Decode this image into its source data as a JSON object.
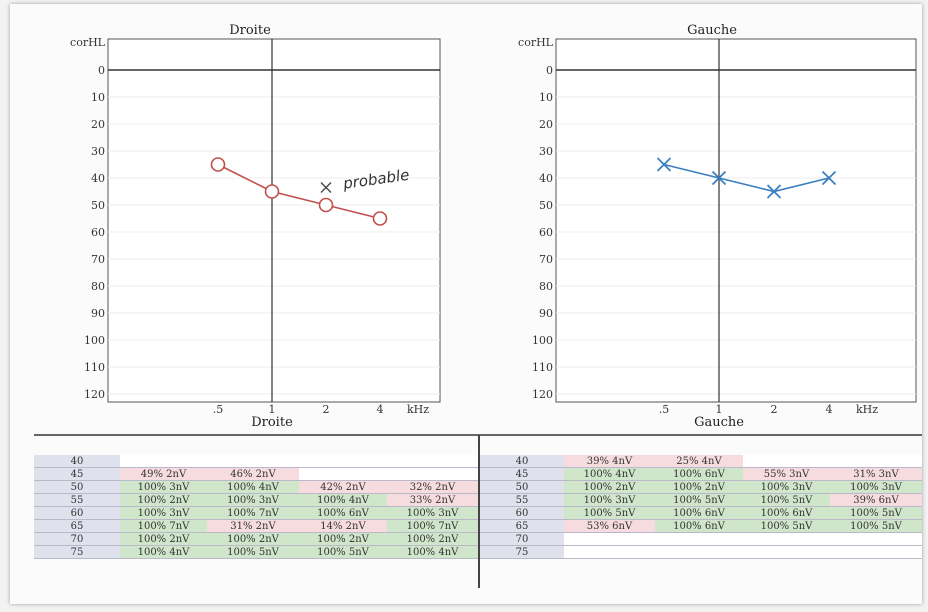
{
  "colors": {
    "right_ear": "#c0504d",
    "left_ear": "#3a7fbf",
    "cell_ok": "#cfe6cb",
    "cell_low": "#f7dcdf"
  },
  "chart_data": [
    {
      "type": "line",
      "title": "Droite",
      "xlabel": "Droite",
      "ylabel": "corHL",
      "x_unit": "kHz",
      "x": [
        ".5",
        "1",
        "2",
        "4"
      ],
      "yticks": [
        0,
        10,
        20,
        30,
        40,
        50,
        60,
        70,
        80,
        90,
        100,
        110,
        120
      ],
      "ylim": [
        0,
        120
      ],
      "y_inverted": true,
      "series": [
        {
          "marker": "circle",
          "values": [
            35,
            45,
            50,
            55
          ]
        }
      ],
      "extra_marks": [
        {
          "marker": "cross",
          "x": "2",
          "y": 45
        }
      ],
      "annotation": "probable",
      "grid": true
    },
    {
      "type": "line",
      "title": "Gauche",
      "xlabel": "Gauche",
      "ylabel": "corHL",
      "x_unit": "kHz",
      "x": [
        ".5",
        "1",
        "2",
        "4"
      ],
      "yticks": [
        0,
        10,
        20,
        30,
        40,
        50,
        60,
        70,
        80,
        90,
        100,
        110,
        120
      ],
      "ylim": [
        0,
        120
      ],
      "y_inverted": true,
      "series": [
        {
          "marker": "cross",
          "values": [
            35,
            40,
            45,
            40
          ]
        }
      ],
      "grid": true
    }
  ],
  "tables": {
    "right": {
      "rows": [
        {
          "level": "40",
          "cells": [
            [
              "",
              "w"
            ],
            [
              "",
              "w"
            ],
            [
              "",
              "w"
            ],
            [
              "",
              "w"
            ]
          ]
        },
        {
          "level": "45",
          "cells": [
            [
              "49%  2nV",
              "p"
            ],
            [
              "46%  2nV",
              "p"
            ],
            [
              "",
              "w"
            ],
            [
              "",
              "w"
            ]
          ]
        },
        {
          "level": "50",
          "cells": [
            [
              "100%  3nV",
              "g"
            ],
            [
              "100%  4nV",
              "g"
            ],
            [
              "42%  2nV",
              "p"
            ],
            [
              "32%  2nV",
              "p"
            ]
          ]
        },
        {
          "level": "55",
          "cells": [
            [
              "100%  2nV",
              "g"
            ],
            [
              "100%  3nV",
              "g"
            ],
            [
              "100%  4nV",
              "g"
            ],
            [
              "33%  2nV",
              "p"
            ]
          ]
        },
        {
          "level": "60",
          "cells": [
            [
              "100%  3nV",
              "g"
            ],
            [
              "100%  7nV",
              "g"
            ],
            [
              "100%  6nV",
              "g"
            ],
            [
              "100%  3nV",
              "g"
            ]
          ]
        },
        {
          "level": "65",
          "cells": [
            [
              "100%  7nV",
              "g"
            ],
            [
              "31%  2nV",
              "p"
            ],
            [
              "14%  2nV",
              "p"
            ],
            [
              "100%  7nV",
              "g"
            ]
          ]
        },
        {
          "level": "70",
          "cells": [
            [
              "100%  2nV",
              "g"
            ],
            [
              "100%  2nV",
              "g"
            ],
            [
              "100%  2nV",
              "g"
            ],
            [
              "100%  2nV",
              "g"
            ]
          ]
        },
        {
          "level": "75",
          "cells": [
            [
              "100%  4nV",
              "g"
            ],
            [
              "100%  5nV",
              "g"
            ],
            [
              "100%  5nV",
              "g"
            ],
            [
              "100%  4nV",
              "g"
            ]
          ]
        }
      ]
    },
    "left": {
      "rows": [
        {
          "level": "40",
          "cells": [
            [
              "39%  4nV",
              "p"
            ],
            [
              "25%  4nV",
              "p"
            ],
            [
              "",
              "w"
            ],
            [
              "",
              "w"
            ]
          ]
        },
        {
          "level": "45",
          "cells": [
            [
              "100%  4nV",
              "g"
            ],
            [
              "100%  6nV",
              "g"
            ],
            [
              "55%  3nV",
              "p"
            ],
            [
              "31%  3nV",
              "p"
            ]
          ]
        },
        {
          "level": "50",
          "cells": [
            [
              "100%  2nV",
              "g"
            ],
            [
              "100%  2nV",
              "g"
            ],
            [
              "100%  3nV",
              "g"
            ],
            [
              "100%  3nV",
              "g"
            ]
          ]
        },
        {
          "level": "55",
          "cells": [
            [
              "100%  3nV",
              "g"
            ],
            [
              "100%  5nV",
              "g"
            ],
            [
              "100%  5nV",
              "g"
            ],
            [
              "39%  6nV",
              "p"
            ]
          ]
        },
        {
          "level": "60",
          "cells": [
            [
              "100%  5nV",
              "g"
            ],
            [
              "100%  6nV",
              "g"
            ],
            [
              "100%  6nV",
              "g"
            ],
            [
              "100%  5nV",
              "g"
            ]
          ]
        },
        {
          "level": "65",
          "cells": [
            [
              "53%  6nV",
              "p"
            ],
            [
              "100%  6nV",
              "g"
            ],
            [
              "100%  5nV",
              "g"
            ],
            [
              "100%  5nV",
              "g"
            ]
          ]
        },
        {
          "level": "70",
          "cells": [
            [
              "",
              "w"
            ],
            [
              "",
              "w"
            ],
            [
              "",
              "w"
            ],
            [
              "",
              "w"
            ]
          ]
        },
        {
          "level": "75",
          "cells": [
            [
              "",
              "w"
            ],
            [
              "",
              "w"
            ],
            [
              "",
              "w"
            ],
            [
              "",
              "w"
            ]
          ]
        }
      ]
    }
  }
}
